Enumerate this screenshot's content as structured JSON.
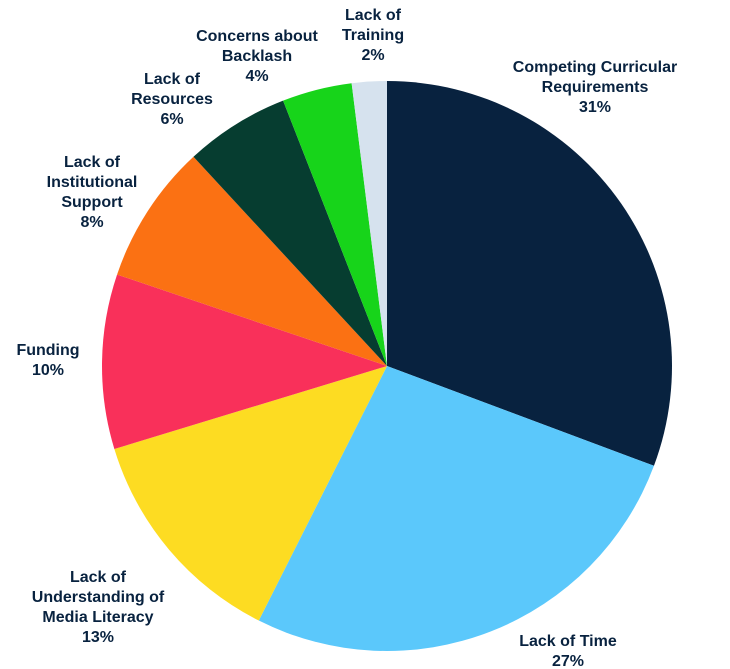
{
  "chart_data": {
    "type": "pie",
    "categories": [
      "Competing Curricular Requirements",
      "Lack of Time",
      "Lack of Understanding of Media Literacy",
      "Funding",
      "Lack of Institutional Support",
      "Lack of Resources",
      "Concerns about Backlash",
      "Lack of Training"
    ],
    "values": [
      31,
      27,
      13,
      10,
      8,
      6,
      4,
      2
    ],
    "value_labels": [
      "31%",
      "27%",
      "13%",
      "10%",
      "8%",
      "6%",
      "4%",
      "2%"
    ],
    "colors": [
      "#08223f",
      "#5bc8fb",
      "#fddc22",
      "#f9305a",
      "#fb7113",
      "#063d30",
      "#17d41a",
      "#d6e2ee"
    ]
  }
}
